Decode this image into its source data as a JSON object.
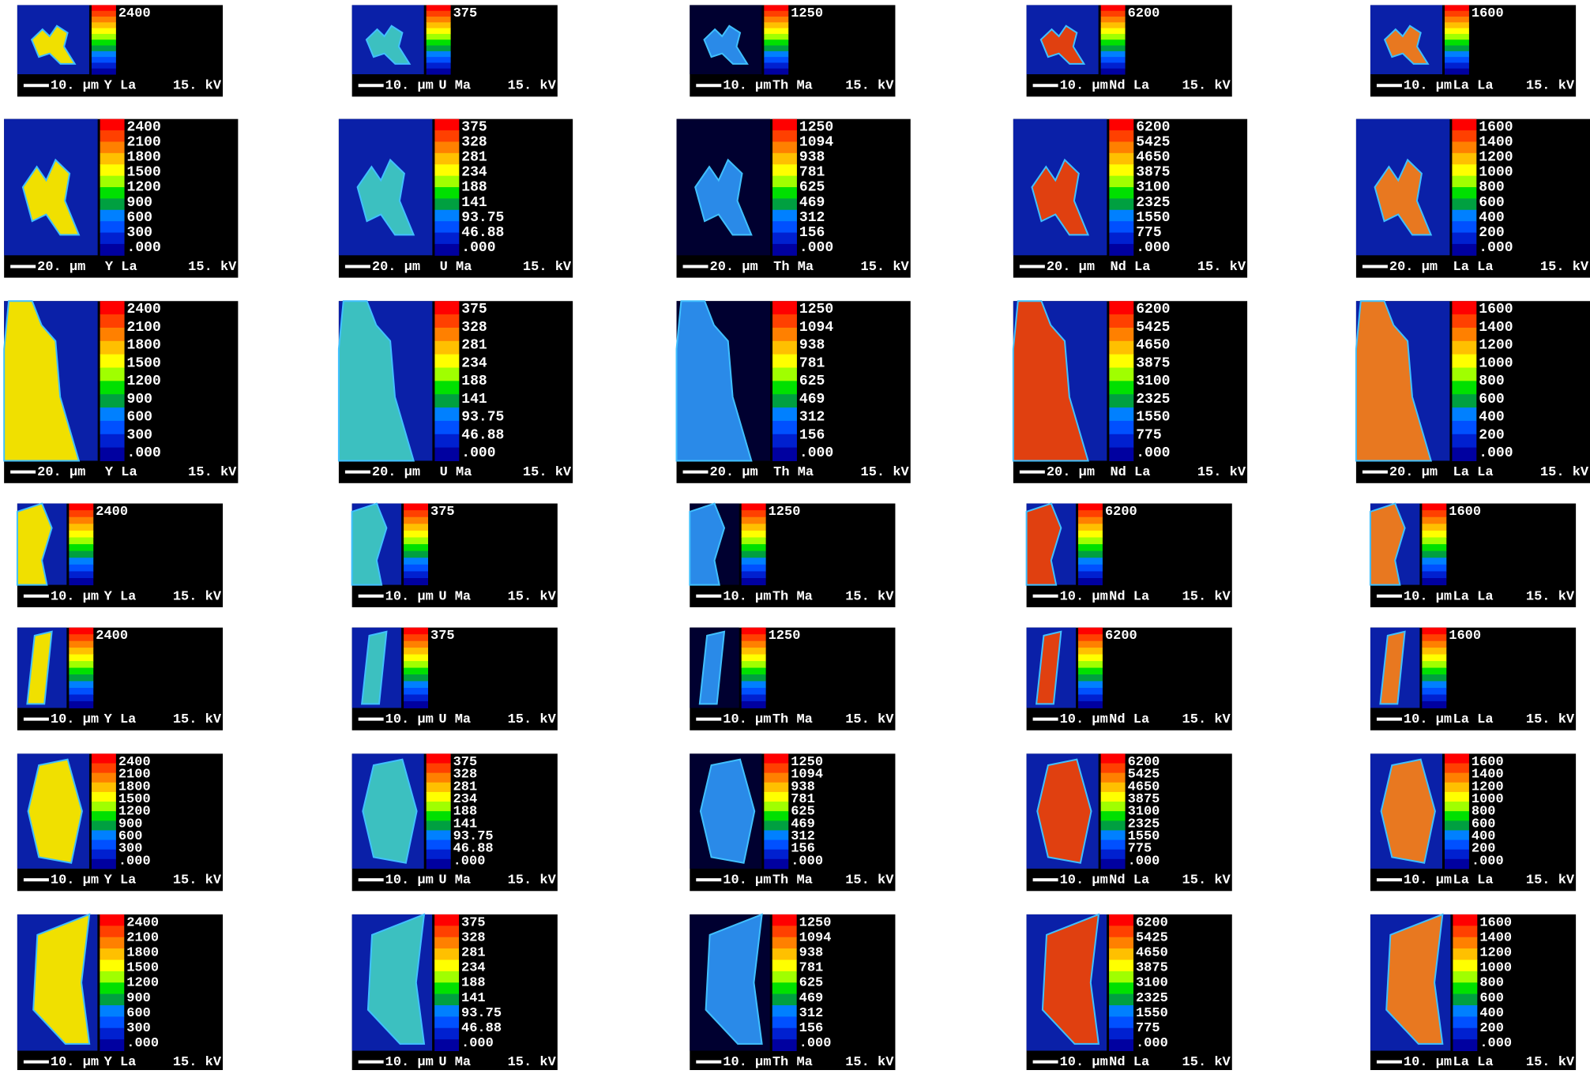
{
  "elements": [
    "Y La",
    "U Ma",
    "Th Ma",
    "Nd La",
    "La La"
  ],
  "voltage": "15. kV",
  "colorbars": [
    [
      "2400",
      "2100",
      "1800",
      "1500",
      "1200",
      "900",
      "600",
      "300",
      ".000"
    ],
    [
      "375",
      "328",
      "281",
      "234",
      "188",
      "141",
      "93.75",
      "46.88",
      ".000"
    ],
    [
      "1250",
      "1094",
      "938",
      "781",
      "625",
      "469",
      "312",
      "156",
      ".000"
    ],
    [
      "6200",
      "5425",
      "4650",
      "3875",
      "3100",
      "2325",
      "1550",
      "775",
      ".000"
    ],
    [
      "1600",
      "1400",
      "1200",
      "1000",
      "800",
      "600",
      "400",
      "200",
      ".000"
    ]
  ],
  "rows": [
    {
      "scale_bar": "10. µm",
      "full_labels": false
    },
    {
      "scale_bar": "20. µm",
      "full_labels": true
    },
    {
      "scale_bar": "20. µm",
      "full_labels": true
    },
    {
      "scale_bar": "10. µm",
      "full_labels": false
    },
    {
      "scale_bar": "10. µm",
      "full_labels": false
    },
    {
      "scale_bar": "10. µm",
      "full_labels": true
    },
    {
      "scale_bar": "10. µm",
      "full_labels": true
    }
  ]
}
